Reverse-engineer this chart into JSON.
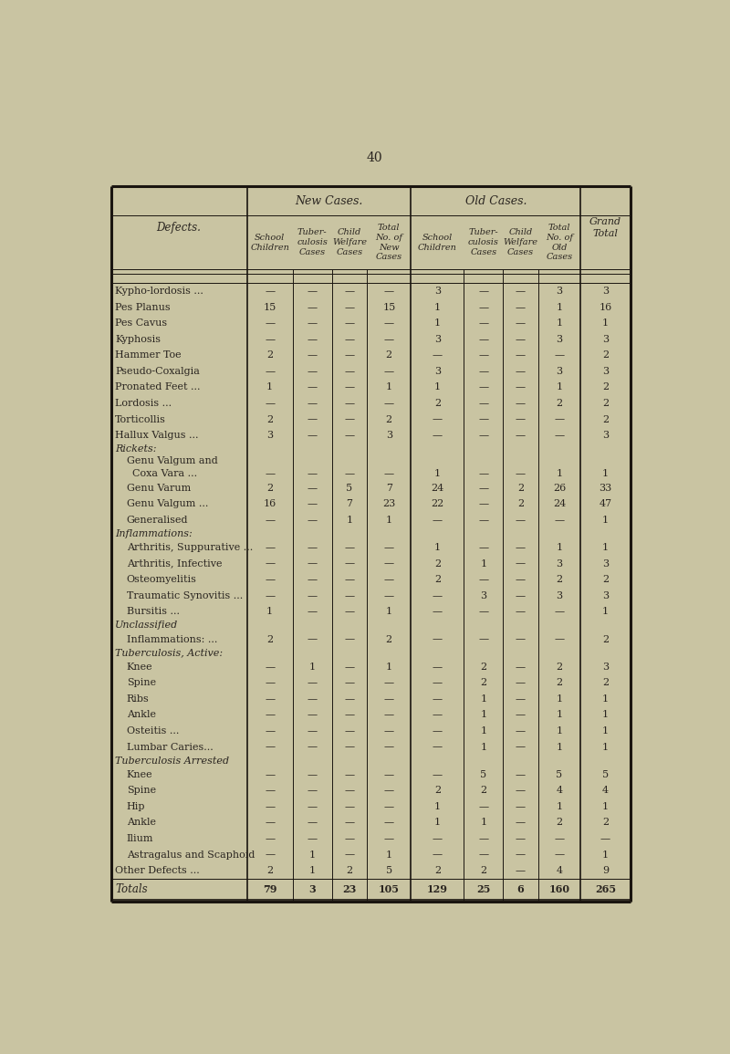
{
  "page_number": "40",
  "bg_color": "#c9c4a2",
  "text_color": "#2a2520",
  "title_new": "New Cases.",
  "title_old": "Old Cases.",
  "col_headers_new": [
    "School\nChildren",
    "Tuber-\nculosis\nCases",
    "Child\nWelfare\nCases",
    "Total\nNo. of\nNew\nCases"
  ],
  "col_headers_old": [
    "School\nChildren",
    "Tuber-\nculosis\nCases",
    "Child\nWelfare\nCases",
    "Total\nNo. of\nOld\nCases"
  ],
  "rows": [
    {
      "label": "Kypho-lordosis ...",
      "indent": 0,
      "vals": [
        "—",
        "—",
        "—",
        "—",
        "3",
        "—",
        "—",
        "3",
        "3"
      ]
    },
    {
      "label": "Pes Planus",
      "indent": 0,
      "vals": [
        "15",
        "—",
        "—",
        "15",
        "1",
        "—",
        "—",
        "1",
        "16"
      ]
    },
    {
      "label": "Pes Cavus",
      "indent": 0,
      "vals": [
        "—",
        "—",
        "—",
        "—",
        "1",
        "—",
        "—",
        "1",
        "1"
      ]
    },
    {
      "label": "Kyphosis",
      "indent": 0,
      "vals": [
        "—",
        "—",
        "—",
        "—",
        "3",
        "—",
        "—",
        "3",
        "3"
      ]
    },
    {
      "label": "Hammer Toe",
      "indent": 0,
      "vals": [
        "2",
        "—",
        "—",
        "2",
        "—",
        "—",
        "—",
        "—",
        "2"
      ]
    },
    {
      "label": "Pseudo-Coxalgia",
      "indent": 0,
      "vals": [
        "—",
        "—",
        "—",
        "—",
        "3",
        "—",
        "—",
        "3",
        "3"
      ]
    },
    {
      "label": "Pronated Feet ...",
      "indent": 0,
      "vals": [
        "1",
        "—",
        "—",
        "1",
        "1",
        "—",
        "—",
        "1",
        "2"
      ]
    },
    {
      "label": "Lordosis ...",
      "indent": 0,
      "vals": [
        "—",
        "—",
        "—",
        "—",
        "2",
        "—",
        "—",
        "2",
        "2"
      ]
    },
    {
      "label": "Torticollis",
      "indent": 0,
      "vals": [
        "2",
        "—",
        "—",
        "2",
        "—",
        "—",
        "—",
        "—",
        "2"
      ]
    },
    {
      "label": "Hallux Valgus ...",
      "indent": 0,
      "vals": [
        "3",
        "—",
        "—",
        "3",
        "—",
        "—",
        "—",
        "—",
        "3"
      ]
    },
    {
      "label": "Rickets:",
      "indent": 0,
      "vals": [
        "",
        "",
        "",
        "",
        "",
        "",
        "",
        "",
        ""
      ],
      "section": true
    },
    {
      "label": "Genu Valgum and",
      "indent": 1,
      "vals": [
        "",
        "",
        "",
        "",
        "",
        "",
        "",
        "",
        ""
      ],
      "half": true
    },
    {
      "label": "    Coxa Vara ...",
      "indent": 1,
      "vals": [
        "—",
        "—",
        "—",
        "—",
        "1",
        "—",
        "—",
        "1",
        "1"
      ],
      "half": true
    },
    {
      "label": "Genu Varum",
      "indent": 1,
      "vals": [
        "2",
        "—",
        "5",
        "7",
        "24",
        "—",
        "2",
        "26",
        "33"
      ]
    },
    {
      "label": "Genu Valgum ...",
      "indent": 1,
      "vals": [
        "16",
        "—",
        "7",
        "23",
        "22",
        "—",
        "2",
        "24",
        "47"
      ]
    },
    {
      "label": "Generalised",
      "indent": 1,
      "vals": [
        "—",
        "—",
        "1",
        "1",
        "—",
        "—",
        "—",
        "—",
        "1"
      ]
    },
    {
      "label": "Inflammations:",
      "indent": 0,
      "vals": [
        "",
        "",
        "",
        "",
        "",
        "",
        "",
        "",
        ""
      ],
      "section": true
    },
    {
      "label": "Arthritis, Suppurative ...",
      "indent": 1,
      "vals": [
        "—",
        "—",
        "—",
        "—",
        "1",
        "—",
        "—",
        "1",
        "1"
      ]
    },
    {
      "label": "Arthritis, Infective",
      "indent": 1,
      "vals": [
        "—",
        "—",
        "—",
        "—",
        "2",
        "1",
        "—",
        "3",
        "3"
      ]
    },
    {
      "label": "Osteomyelitis",
      "indent": 1,
      "vals": [
        "—",
        "—",
        "—",
        "—",
        "2",
        "—",
        "—",
        "2",
        "2"
      ]
    },
    {
      "label": "Traumatic Synovitis ...",
      "indent": 1,
      "vals": [
        "—",
        "—",
        "—",
        "—",
        "—",
        "3",
        "—",
        "3",
        "3"
      ]
    },
    {
      "label": "Bursitis ...",
      "indent": 1,
      "vals": [
        "1",
        "—",
        "—",
        "1",
        "—",
        "—",
        "—",
        "—",
        "1"
      ]
    },
    {
      "label": "Unclassified",
      "indent": 0,
      "vals": [
        "",
        "",
        "",
        "",
        "",
        "",
        "",
        "",
        ""
      ],
      "section": true
    },
    {
      "label": "Inflammations: ...",
      "indent": 1,
      "vals": [
        "2",
        "—",
        "—",
        "2",
        "—",
        "—",
        "—",
        "—",
        "2"
      ]
    },
    {
      "label": "Tuberculosis, Active:",
      "indent": 0,
      "vals": [
        "",
        "",
        "",
        "",
        "",
        "",
        "",
        "",
        ""
      ],
      "section": true
    },
    {
      "label": "Knee",
      "indent": 1,
      "vals": [
        "—",
        "1",
        "—",
        "1",
        "—",
        "2",
        "—",
        "2",
        "3"
      ]
    },
    {
      "label": "Spine",
      "indent": 1,
      "vals": [
        "—",
        "—",
        "—",
        "—",
        "—",
        "2",
        "—",
        "2",
        "2"
      ]
    },
    {
      "label": "Ribs",
      "indent": 1,
      "vals": [
        "—",
        "—",
        "—",
        "—",
        "—",
        "1",
        "—",
        "1",
        "1"
      ]
    },
    {
      "label": "Ankle",
      "indent": 1,
      "vals": [
        "—",
        "—",
        "—",
        "—",
        "—",
        "1",
        "—",
        "1",
        "1"
      ]
    },
    {
      "label": "Osteitis ...",
      "indent": 1,
      "vals": [
        "—",
        "—",
        "—",
        "—",
        "—",
        "1",
        "—",
        "1",
        "1"
      ]
    },
    {
      "label": "Lumbar Caries...",
      "indent": 1,
      "vals": [
        "—",
        "—",
        "—",
        "—",
        "—",
        "1",
        "—",
        "1",
        "1"
      ]
    },
    {
      "label": "Tuberculosis Arrested",
      "indent": 0,
      "vals": [
        "",
        "",
        "",
        "",
        "",
        "",
        "",
        "",
        ""
      ],
      "section": true
    },
    {
      "label": "Knee",
      "indent": 1,
      "vals": [
        "—",
        "—",
        "—",
        "—",
        "—",
        "5",
        "—",
        "5",
        "5"
      ]
    },
    {
      "label": "Spine",
      "indent": 1,
      "vals": [
        "—",
        "—",
        "—",
        "—",
        "2",
        "2",
        "—",
        "4",
        "4"
      ]
    },
    {
      "label": "Hip",
      "indent": 1,
      "vals": [
        "—",
        "—",
        "—",
        "—",
        "1",
        "—",
        "—",
        "1",
        "1"
      ]
    },
    {
      "label": "Ankle",
      "indent": 1,
      "vals": [
        "—",
        "—",
        "—",
        "—",
        "1",
        "1",
        "—",
        "2",
        "2"
      ]
    },
    {
      "label": "Ilium",
      "indent": 1,
      "vals": [
        "—",
        "—",
        "—",
        "—",
        "—",
        "—",
        "—",
        "—",
        "—"
      ]
    },
    {
      "label": "Astragalus and Scaphoid",
      "indent": 1,
      "vals": [
        "—",
        "1",
        "—",
        "1",
        "—",
        "—",
        "—",
        "—",
        "1"
      ]
    },
    {
      "label": "Other Defects ...",
      "indent": 0,
      "vals": [
        "2",
        "1",
        "2",
        "5",
        "2",
        "2",
        "—",
        "4",
        "9"
      ]
    },
    {
      "label": "Totals",
      "indent": 0,
      "vals": [
        "79",
        "3",
        "23",
        "105",
        "129",
        "25",
        "6",
        "160",
        "265"
      ],
      "totals": true
    }
  ]
}
